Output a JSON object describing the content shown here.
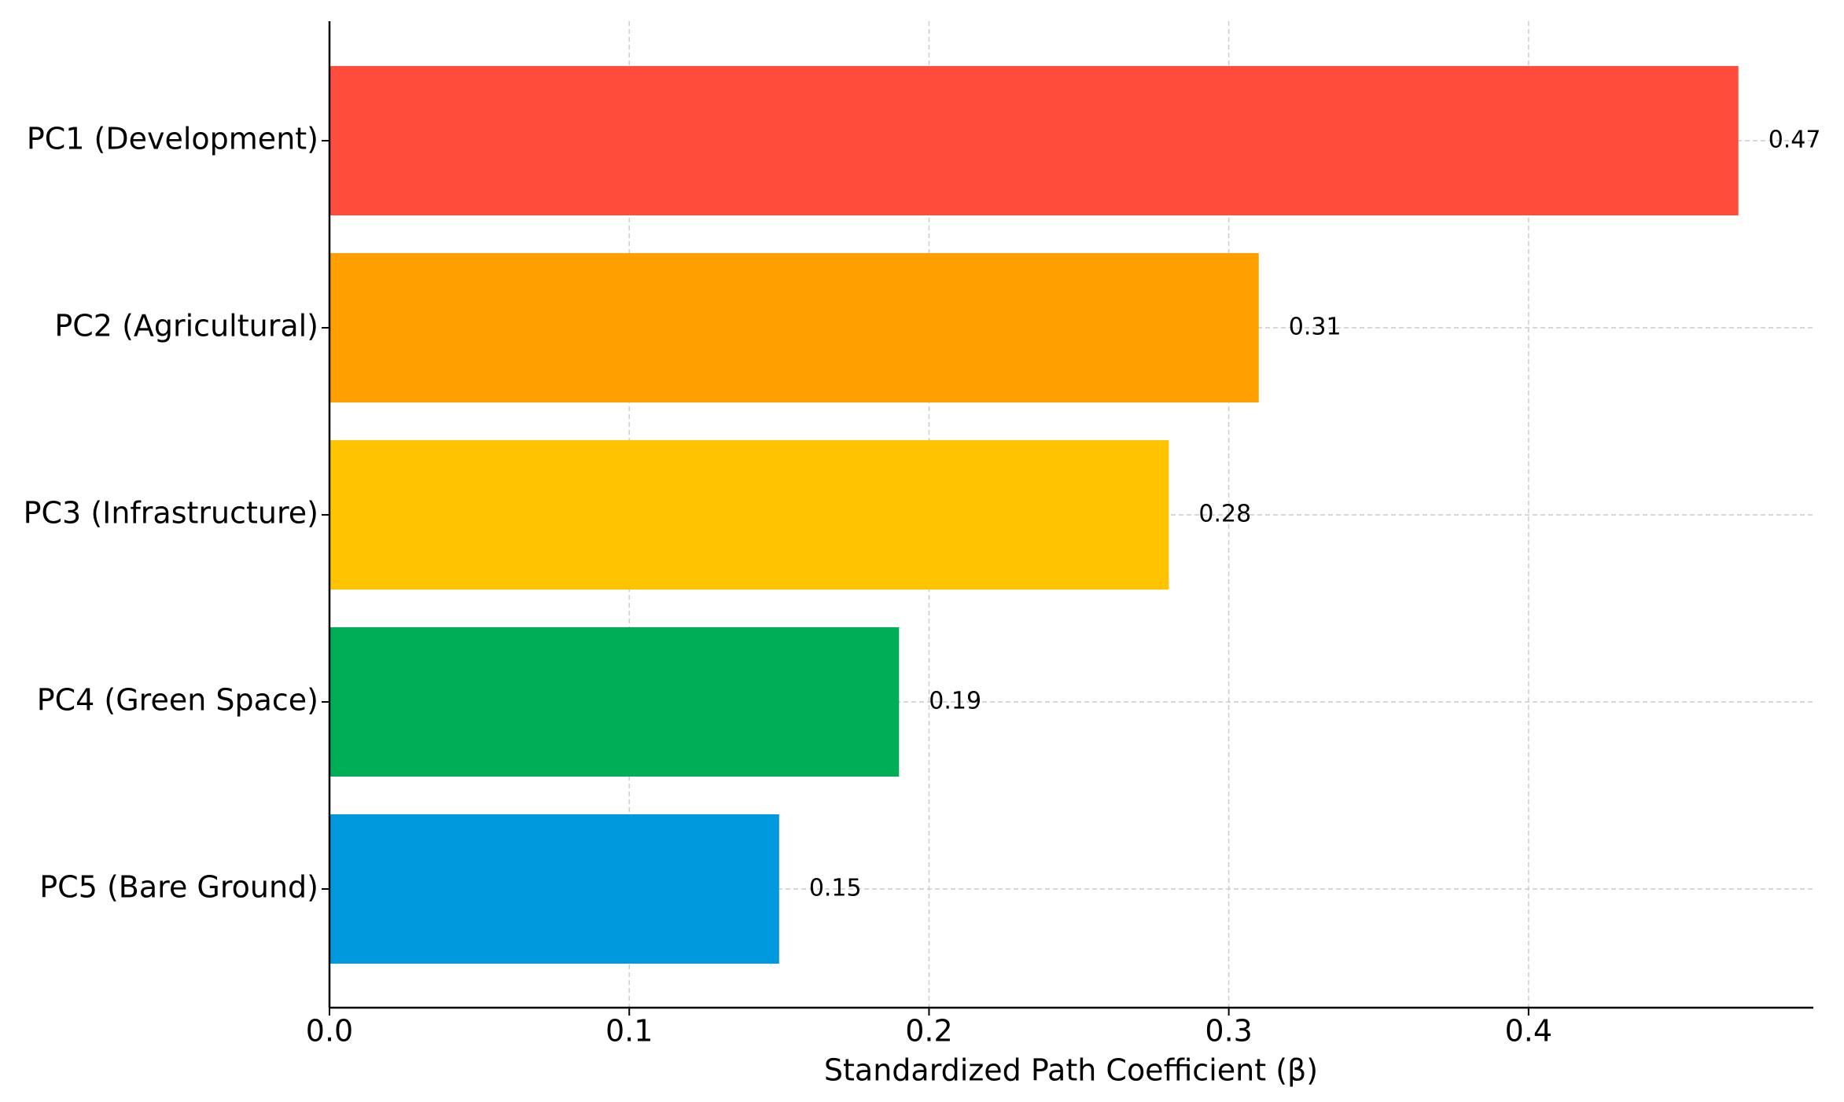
{
  "chart_data": {
    "type": "barh",
    "xlabel": "Standardized Path Coefficient (β)",
    "categories": [
      "PC1 (Development)",
      "PC2 (Agricultural)",
      "PC3 (Infrastructure)",
      "PC4 (Green Space)",
      "PC5 (Bare Ground)"
    ],
    "values": [
      0.47,
      0.31,
      0.28,
      0.19,
      0.15
    ],
    "colors": [
      "#ff4c3b",
      "#ff9f00",
      "#ffc300",
      "#00ae57",
      "#0099dd"
    ],
    "xlim": [
      0,
      0.495
    ],
    "xticks": [
      {
        "value": 0,
        "label": "0.0"
      },
      0.1,
      0.2,
      0.3,
      0.4
    ],
    "grid": true
  }
}
